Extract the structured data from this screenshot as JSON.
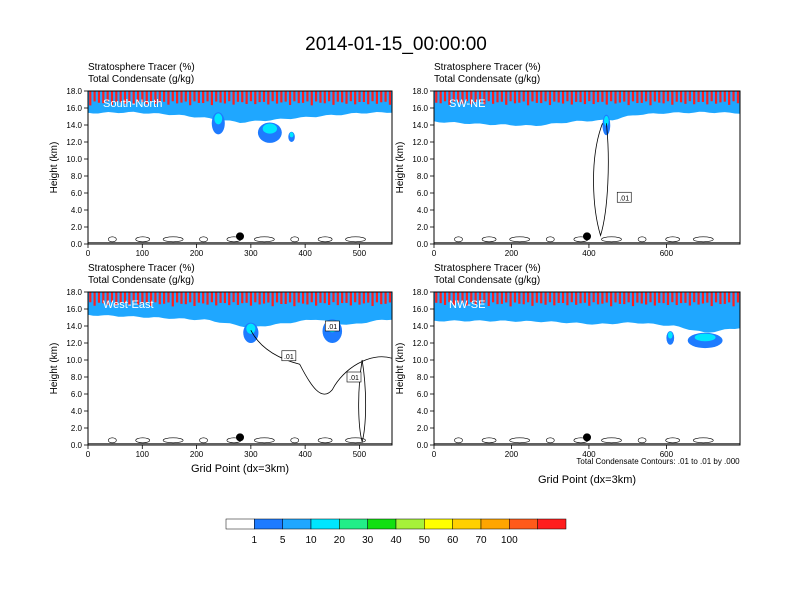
{
  "page": {
    "title": "2014-01-15_00:00:00"
  },
  "panels_common": {
    "line1": "Stratosphere Tracer",
    "unit1": "(%)",
    "line2": "Total Condensate",
    "unit2": "(g/kg)",
    "ylabel": "Height (km)",
    "y_ticks": [
      "0.0",
      "2.0",
      "4.0",
      "6.0",
      "8.0",
      "10.0",
      "12.0",
      "14.0",
      "16.0",
      "18.0"
    ]
  },
  "contour_note": "Total Condensate Contours: .01 to .01 by .000",
  "colorbar": {
    "levels": [
      "1",
      "5",
      "10",
      "20",
      "30",
      "40",
      "50",
      "60",
      "70",
      "100"
    ],
    "colors": [
      "#ffffff",
      "#1e7bff",
      "#1fa7ff",
      "#00e6ff",
      "#22ee88",
      "#11e011",
      "#a6f23a",
      "#ffff00",
      "#ffd000",
      "#ffa500",
      "#ff5a1a",
      "#ff1e1e"
    ]
  },
  "chart_data": [
    {
      "type": "heatmap",
      "label": "South-North",
      "xlabel": "",
      "xlim": [
        0,
        560
      ],
      "ylim": [
        0,
        18
      ],
      "x_ticks": [
        0,
        100,
        200,
        300,
        400,
        500
      ],
      "marker_x": 280,
      "contour_labels": [],
      "tropopause": [
        [
          0,
          15.4
        ],
        [
          80,
          15.5
        ],
        [
          160,
          15.2
        ],
        [
          220,
          14.8
        ],
        [
          280,
          14.3
        ],
        [
          340,
          14.6
        ],
        [
          420,
          15.0
        ],
        [
          500,
          15.4
        ],
        [
          560,
          15.5
        ]
      ],
      "cloud_blobs": [
        [
          240,
          14.2,
          12,
          1.3
        ],
        [
          335,
          13.1,
          22,
          1.2
        ],
        [
          375,
          12.6,
          6,
          0.6
        ]
      ]
    },
    {
      "type": "heatmap",
      "label": "SW-NE",
      "xlabel": "",
      "xlim": [
        0,
        790
      ],
      "ylim": [
        0,
        18
      ],
      "x_ticks": [
        0,
        200,
        400,
        600
      ],
      "marker_x": 395,
      "contour_labels": [
        ".01"
      ],
      "tropopause": [
        [
          0,
          14.4
        ],
        [
          120,
          14.1
        ],
        [
          260,
          13.9
        ],
        [
          360,
          14.4
        ],
        [
          460,
          14.6
        ],
        [
          520,
          15.2
        ],
        [
          600,
          15.4
        ],
        [
          700,
          15.5
        ],
        [
          790,
          15.4
        ]
      ],
      "cloud_blobs": [
        [
          445,
          14.0,
          10,
          1.2
        ]
      ]
    },
    {
      "type": "heatmap",
      "label": "West-East",
      "xlabel": "Grid Point (dx=3km)",
      "xlim": [
        0,
        560
      ],
      "ylim": [
        0,
        18
      ],
      "x_ticks": [
        0,
        100,
        200,
        300,
        400,
        500
      ],
      "marker_x": 280,
      "contour_labels": [
        ".01",
        ".01",
        ".01"
      ],
      "tropopause": [
        [
          0,
          15.3
        ],
        [
          120,
          15.0
        ],
        [
          220,
          14.7
        ],
        [
          300,
          13.8
        ],
        [
          360,
          14.3
        ],
        [
          420,
          14.8
        ],
        [
          480,
          14.1
        ],
        [
          540,
          14.7
        ],
        [
          560,
          14.8
        ]
      ],
      "cloud_blobs": [
        [
          300,
          13.2,
          14,
          1.2
        ],
        [
          450,
          13.4,
          18,
          1.4
        ]
      ]
    },
    {
      "type": "heatmap",
      "label": "NW-SE",
      "xlabel": "Grid Point (dx=3km)",
      "xlim": [
        0,
        790
      ],
      "ylim": [
        0,
        18
      ],
      "x_ticks": [
        0,
        200,
        400,
        600
      ],
      "marker_x": 395,
      "contour_labels": [],
      "tropopause": [
        [
          0,
          14.6
        ],
        [
          150,
          14.6
        ],
        [
          300,
          14.5
        ],
        [
          420,
          14.2
        ],
        [
          520,
          14.4
        ],
        [
          620,
          14.0
        ],
        [
          700,
          13.2
        ],
        [
          760,
          13.6
        ],
        [
          790,
          13.8
        ]
      ],
      "cloud_blobs": [
        [
          700,
          12.3,
          45,
          0.9
        ],
        [
          610,
          12.6,
          10,
          0.8
        ]
      ]
    }
  ]
}
